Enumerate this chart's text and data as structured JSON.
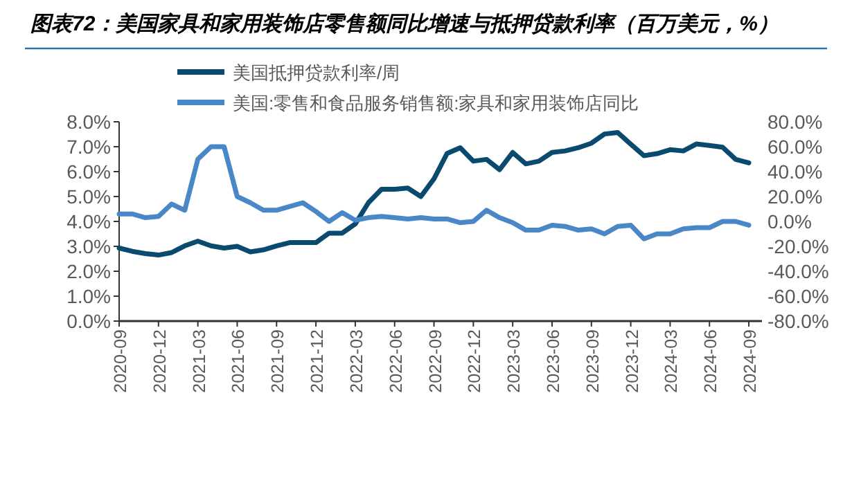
{
  "chart_data": {
    "type": "line",
    "title": "图表72：美国家具和家用装饰店零售额同比增速与抵押贷款利率（百万美元，%）",
    "x": [
      "2020-09",
      "2020-10",
      "2020-11",
      "2020-12",
      "2021-01",
      "2021-02",
      "2021-03",
      "2021-04",
      "2021-05",
      "2021-06",
      "2021-07",
      "2021-08",
      "2021-09",
      "2021-10",
      "2021-11",
      "2021-12",
      "2022-01",
      "2022-02",
      "2022-03",
      "2022-04",
      "2022-05",
      "2022-06",
      "2022-07",
      "2022-08",
      "2022-09",
      "2022-10",
      "2022-11",
      "2022-12",
      "2023-01",
      "2023-02",
      "2023-03",
      "2023-04",
      "2023-05",
      "2023-06",
      "2023-07",
      "2023-08",
      "2023-09",
      "2023-10",
      "2023-11",
      "2023-12",
      "2024-01",
      "2024-02",
      "2024-03",
      "2024-04",
      "2024-05",
      "2024-06",
      "2024-07",
      "2024-08",
      "2024-09"
    ],
    "series": [
      {
        "name": "美国抵押贷款利率/周",
        "color": "#0b4a6f",
        "values": [
          2.93,
          2.8,
          2.71,
          2.65,
          2.75,
          3.02,
          3.21,
          3.02,
          2.93,
          3.0,
          2.78,
          2.86,
          3.02,
          3.15,
          3.15,
          3.15,
          3.53,
          3.53,
          3.9,
          4.75,
          5.29,
          5.29,
          5.34,
          5.0,
          5.71,
          6.73,
          6.96,
          6.42,
          6.49,
          6.08,
          6.77,
          6.31,
          6.42,
          6.77,
          6.83,
          6.96,
          7.14,
          7.51,
          7.57,
          7.1,
          6.64,
          6.72,
          6.88,
          6.83,
          7.11,
          7.05,
          6.98,
          6.49,
          6.35
        ]
      },
      {
        "name": "美国:零售和食品服务销售额:家具和家用装饰店同比",
        "color": "#4a87c6",
        "axis": "y2",
        "values": [
          6,
          6,
          3,
          4,
          14,
          9,
          50,
          60,
          60,
          20,
          15,
          9,
          9,
          12,
          15,
          8,
          0,
          7,
          1,
          3,
          4,
          3,
          2,
          3,
          2,
          2,
          -1,
          0,
          9,
          3,
          -1,
          -7,
          -7,
          -3,
          -4,
          -7,
          -6,
          -10,
          -4,
          -3,
          -14,
          -10,
          -10,
          -6,
          -5,
          -5,
          0,
          0,
          -3
        ]
      }
    ],
    "xlim": [
      "2020-09",
      "2024-10"
    ],
    "xticks": [
      "2020-09",
      "2020-12",
      "2021-03",
      "2021-06",
      "2021-09",
      "2021-12",
      "2022-03",
      "2022-06",
      "2022-09",
      "2022-12",
      "2023-03",
      "2023-06",
      "2023-09",
      "2023-12",
      "2024-03",
      "2024-06",
      "2024-09"
    ],
    "ylim": [
      0,
      8
    ],
    "yticks": [
      {
        "value": 0,
        "label": "0.0%"
      },
      {
        "value": 1,
        "label": "1.0%"
      },
      {
        "value": 2,
        "label": "2.0%"
      },
      {
        "value": 3,
        "label": "3.0%"
      },
      {
        "value": 4,
        "label": "4.0%"
      },
      {
        "value": 5,
        "label": "5.0%"
      },
      {
        "value": 6,
        "label": "6.0%"
      },
      {
        "value": 7,
        "label": "7.0%"
      },
      {
        "value": 8,
        "label": "8.0%"
      }
    ],
    "y2lim": [
      -80,
      80
    ],
    "y2ticks": [
      {
        "value": -80,
        "label": "-80.0%"
      },
      {
        "value": -60,
        "label": "-60.0%"
      },
      {
        "value": -40,
        "label": "-40.0%"
      },
      {
        "value": -20,
        "label": "-20.0%"
      },
      {
        "value": 0,
        "label": "0.0%"
      },
      {
        "value": 20,
        "label": "20.0%"
      },
      {
        "value": 40,
        "label": "40.0%"
      },
      {
        "value": 60,
        "label": "60.0%"
      },
      {
        "value": 80,
        "label": "80.0%"
      }
    ],
    "legend": "top",
    "grid": false
  }
}
